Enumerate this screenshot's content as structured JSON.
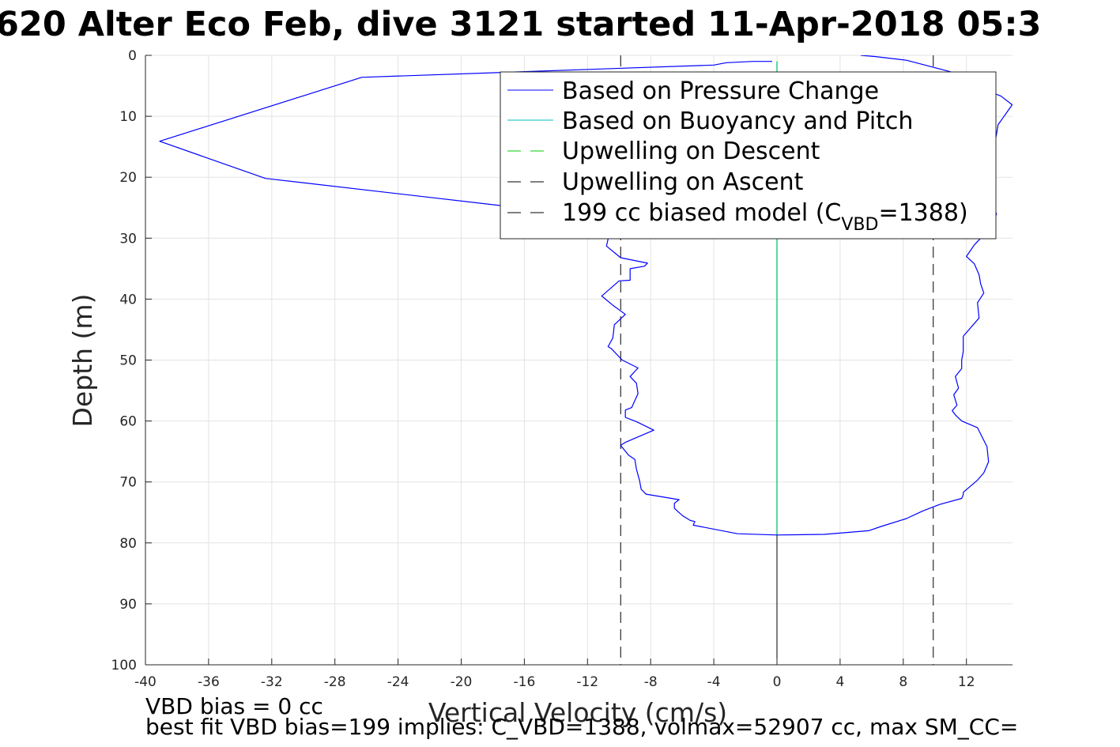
{
  "chart_data": {
    "type": "line",
    "title": "620 Alter Eco Feb, dive 3121 started 11-Apr-2018 05:3",
    "xlabel": "Vertical Velocity (cm/s)",
    "ylabel": "Depth (m)",
    "xlim": [
      -40,
      15
    ],
    "ylim": [
      0,
      100
    ],
    "y_reversed": true,
    "grid": true,
    "xticks": [
      -40,
      -36,
      -32,
      -28,
      -24,
      -20,
      -16,
      -12,
      -8,
      -4,
      0,
      4,
      8,
      12
    ],
    "yticks": [
      0,
      10,
      20,
      30,
      40,
      50,
      60,
      70,
      80,
      90,
      100
    ],
    "legend": {
      "position": "top-right",
      "entries": [
        {
          "label": "Based on Pressure Change",
          "color": "#0000ff",
          "style": "solid"
        },
        {
          "label": "Based on Buoyancy and Pitch",
          "color": "#00bfbf",
          "style": "solid"
        },
        {
          "label": "Upwelling on Descent",
          "color": "#00cc00",
          "style": "dashed"
        },
        {
          "label": "Upwelling on Ascent",
          "color": "#000000",
          "style": "dashed"
        },
        {
          "label": "199 cc biased model (C",
          "subscript": "VBD",
          "suffix": "=1388)",
          "color": "#000000",
          "style": "dashed"
        }
      ]
    },
    "series": [
      {
        "name": "Based on Pressure Change",
        "color": "#0000ff",
        "points": [
          [
            -0.3,
            1.0
          ],
          [
            -1.5,
            1.0
          ],
          [
            -3.2,
            1.2
          ],
          [
            -4.0,
            1.6
          ],
          [
            -26.3,
            3.6
          ],
          [
            -39.1,
            14.1
          ],
          [
            -32.4,
            20.2
          ],
          [
            -16.0,
            25.1
          ],
          [
            -12.0,
            27.0
          ],
          [
            -10.6,
            29.0
          ],
          [
            -10.8,
            31.3
          ],
          [
            -9.9,
            33.2
          ],
          [
            -8.2,
            34.1
          ],
          [
            -8.4,
            34.6
          ],
          [
            -9.3,
            35.0
          ],
          [
            -9.3,
            36.9
          ],
          [
            -10.0,
            37.0
          ],
          [
            -11.1,
            39.5
          ],
          [
            -10.4,
            41.0
          ],
          [
            -9.6,
            42.5
          ],
          [
            -10.3,
            44.2
          ],
          [
            -10.4,
            46.4
          ],
          [
            -10.7,
            47.8
          ],
          [
            -10.5,
            48.1
          ],
          [
            -9.8,
            50.0
          ],
          [
            -8.8,
            51.3
          ],
          [
            -9.3,
            52.7
          ],
          [
            -8.9,
            53.8
          ],
          [
            -8.8,
            55.5
          ],
          [
            -9.2,
            57.8
          ],
          [
            -9.6,
            58.2
          ],
          [
            -9.6,
            59.4
          ],
          [
            -8.9,
            60.1
          ],
          [
            -7.8,
            61.5
          ],
          [
            -9.6,
            63.5
          ],
          [
            -9.9,
            64.0
          ],
          [
            -9.4,
            65.6
          ],
          [
            -9.0,
            66.3
          ],
          [
            -8.9,
            67.9
          ],
          [
            -8.7,
            69.8
          ],
          [
            -8.6,
            71.2
          ],
          [
            -8.3,
            72.0
          ],
          [
            -6.2,
            72.9
          ],
          [
            -6.5,
            73.5
          ],
          [
            -6.5,
            74.3
          ],
          [
            -6.3,
            74.8
          ],
          [
            -6.0,
            75.5
          ],
          [
            -5.5,
            76.3
          ],
          [
            -5.2,
            76.5
          ],
          [
            -5.3,
            77.1
          ],
          [
            -2.5,
            78.5
          ],
          [
            0.0,
            78.7
          ],
          [
            3.0,
            78.6
          ],
          [
            5.8,
            78.0
          ],
          [
            6.6,
            77.3
          ],
          [
            8.2,
            76.0
          ],
          [
            9.2,
            74.8
          ],
          [
            10.3,
            73.7
          ],
          [
            11.7,
            72.7
          ],
          [
            11.8,
            72.1
          ],
          [
            11.8,
            71.7
          ],
          [
            12.7,
            69.7
          ],
          [
            13.1,
            68.5
          ],
          [
            13.4,
            66.7
          ],
          [
            13.3,
            64.2
          ],
          [
            12.7,
            61.1
          ],
          [
            11.7,
            60.0
          ],
          [
            11.3,
            59.0
          ],
          [
            11.1,
            58.3
          ],
          [
            11.4,
            57.4
          ],
          [
            11.2,
            55.7
          ],
          [
            11.5,
            54.6
          ],
          [
            11.3,
            52.7
          ],
          [
            11.7,
            51.4
          ],
          [
            11.7,
            50.0
          ],
          [
            11.8,
            48.6
          ],
          [
            11.8,
            46.1
          ],
          [
            12.8,
            43.1
          ],
          [
            12.7,
            40.6
          ],
          [
            13.1,
            39.0
          ],
          [
            12.9,
            37.5
          ],
          [
            12.8,
            36.0
          ],
          [
            12.5,
            34.2
          ],
          [
            12.0,
            33.0
          ],
          [
            12.5,
            31.1
          ],
          [
            12.9,
            30.0
          ],
          [
            13.3,
            28.8
          ],
          [
            13.6,
            27.6
          ],
          [
            13.9,
            26.1
          ],
          [
            13.6,
            23.3
          ],
          [
            13.2,
            21.0
          ],
          [
            13.0,
            20.0
          ],
          [
            13.3,
            17.7
          ],
          [
            13.7,
            15.6
          ],
          [
            13.9,
            13.0
          ],
          [
            14.0,
            11.4
          ],
          [
            14.9,
            8.1
          ],
          [
            14.2,
            6.7
          ],
          [
            13.9,
            6.4
          ],
          [
            13.2,
            5.5
          ],
          [
            12.6,
            4.2
          ],
          [
            11.0,
            2.7
          ],
          [
            8.2,
            0.8
          ],
          [
            6.2,
            0.2
          ],
          [
            5.3,
            0.0
          ]
        ]
      },
      {
        "name": "Based on Buoyancy and Pitch",
        "color": "#00bfbf",
        "points": [
          [
            0,
            1
          ],
          [
            0,
            78.7
          ]
        ]
      },
      {
        "name": "Upwelling on Descent",
        "color": "#00cc00",
        "points": [
          [
            0,
            1
          ],
          [
            0,
            78.7
          ]
        ]
      },
      {
        "name": "Upwelling on Ascent",
        "color": "#000000",
        "points": [
          [
            0,
            78.7
          ],
          [
            0,
            100
          ]
        ]
      },
      {
        "name": "199 cc biased model",
        "color": "#000000",
        "dashed": true,
        "x_values": [
          -9.9,
          9.9
        ],
        "depth_range": [
          0,
          100
        ]
      }
    ]
  },
  "notes": {
    "line1": "VBD bias = 0 cc",
    "line2": "best fit VBD bias=199 implies: C_VBD=1388, volmax=52907 cc, max SM_CC="
  }
}
